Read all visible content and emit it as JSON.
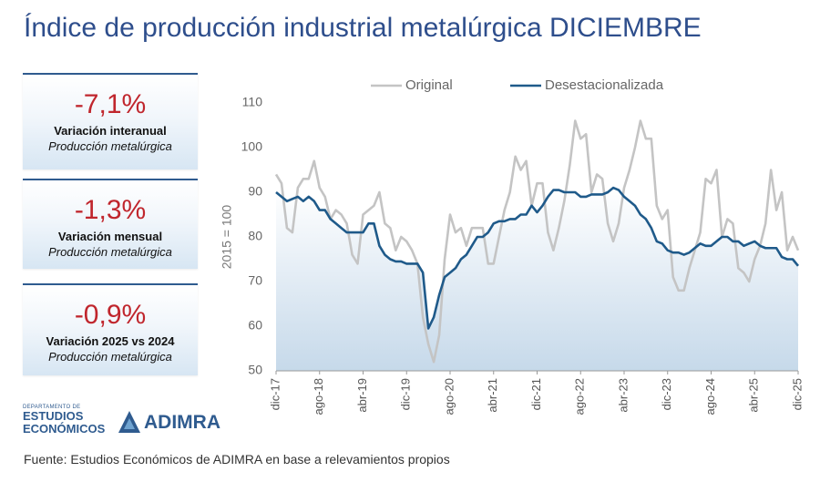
{
  "title": "Índice de producción industrial metalúrgica DICIEMBRE",
  "kpis": [
    {
      "value": "-7,1%",
      "label": "Variación interanual",
      "sub": "Producción metalúrgica"
    },
    {
      "value": "-1,3%",
      "label": "Variación mensual",
      "sub": "Producción metalúrgica"
    },
    {
      "value": "-0,9%",
      "label": "Variación 2025 vs 2024",
      "sub": "Producción metalúrgica"
    }
  ],
  "logo": {
    "department": "DEPARTAMENTO DE",
    "line1": "ESTUDIOS",
    "line2": "ECONÓMICOS",
    "brand": "ADIMRA"
  },
  "source": "Fuente: Estudios Económicos de ADIMRA en base a relevamientos propios",
  "chart_data": {
    "type": "line",
    "y_label": "2015 = 100",
    "categories": [
      "dic-17",
      null,
      null,
      null,
      null,
      null,
      null,
      null,
      "ago-18",
      null,
      null,
      null,
      null,
      null,
      null,
      null,
      "abr-19",
      null,
      null,
      null,
      null,
      null,
      null,
      null,
      "dic-19",
      null,
      null,
      null,
      null,
      null,
      null,
      null,
      "ago-20",
      null,
      null,
      null,
      null,
      null,
      null,
      null,
      "abr-21",
      null,
      null,
      null,
      null,
      null,
      null,
      null,
      "dic-21",
      null,
      null,
      null,
      null,
      null,
      null,
      null,
      "ago-22",
      null,
      null,
      null,
      null,
      null,
      null,
      null,
      "abr-23",
      null,
      null,
      null,
      null,
      null,
      null,
      null,
      "dic-23",
      null,
      null,
      null,
      null,
      null,
      null,
      null,
      "ago-24",
      null,
      null,
      null,
      null,
      null,
      null,
      null,
      "abr-25",
      null,
      null,
      null,
      null,
      null,
      null,
      null,
      "dic-25"
    ],
    "series": [
      {
        "name": "Original",
        "color": "#c4c4c4",
        "values": [
          94,
          92,
          82,
          81,
          91,
          93,
          93,
          97,
          91,
          89,
          84,
          86,
          85,
          83,
          76,
          74,
          85,
          86,
          87,
          90,
          83,
          82,
          77,
          80,
          79,
          77,
          74,
          62,
          56,
          52,
          58,
          75,
          85,
          81,
          82,
          78,
          82,
          82,
          82,
          74,
          74,
          80,
          86,
          90,
          98,
          95,
          97,
          87,
          92,
          92,
          81,
          77,
          82,
          88,
          96,
          106,
          102,
          103,
          90,
          94,
          93,
          83,
          79,
          83,
          91,
          95,
          100,
          106,
          102,
          102,
          87,
          84,
          86,
          71,
          68,
          68,
          73,
          77,
          81,
          93,
          92,
          95,
          80,
          84,
          83,
          73,
          72,
          70,
          75,
          78,
          83,
          95,
          86,
          90,
          77,
          80,
          77
        ]
      },
      {
        "name": "Desestacionalizada",
        "color": "#1f5a8a",
        "values": [
          90,
          89,
          88,
          88.5,
          89,
          88,
          89,
          88,
          86,
          86,
          84,
          83,
          82,
          81,
          81,
          81,
          81,
          83,
          83,
          78,
          76,
          75,
          74.5,
          74.5,
          74,
          74,
          74,
          72,
          59.5,
          62,
          67,
          71,
          72,
          73,
          75,
          76,
          78,
          80,
          80,
          81,
          83,
          83.5,
          83.5,
          84,
          84,
          85,
          85,
          87,
          85.5,
          87,
          89,
          90.5,
          90.5,
          90,
          90,
          90,
          89,
          89,
          89.5,
          89.5,
          89.5,
          90,
          91,
          90.5,
          89,
          88,
          87,
          85,
          84,
          82,
          79,
          78.5,
          77,
          76.5,
          76.5,
          76,
          76.5,
          77.5,
          78.5,
          78,
          78,
          79,
          80,
          80,
          79,
          79,
          78,
          78.5,
          79,
          78,
          77.5,
          77.5,
          77.5,
          75.5,
          75,
          75,
          73.5
        ]
      }
    ],
    "ylim": [
      50,
      110
    ],
    "yticks": [
      50,
      60,
      70,
      80,
      90,
      100,
      110
    ],
    "grid": false,
    "legend": "top"
  }
}
